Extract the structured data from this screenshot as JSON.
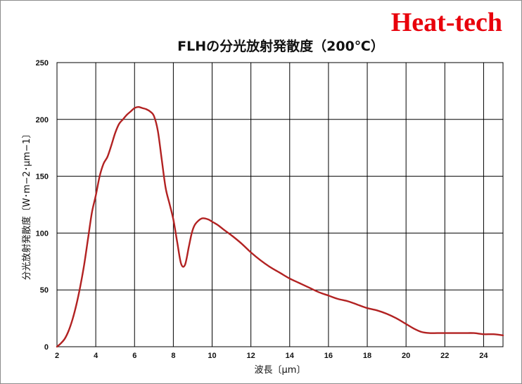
{
  "brand": "Heat-tech",
  "chart_data": {
    "type": "line",
    "title": "FLHの分光放射発散度（200℃）",
    "xlabel": "波長〔μm〕",
    "ylabel": "分光放射発散度〔W･m−2･μm−1〕",
    "xlim": [
      2,
      25
    ],
    "ylim": [
      0,
      250
    ],
    "xticks": [
      2,
      4,
      6,
      8,
      10,
      12,
      14,
      16,
      18,
      20,
      22,
      24
    ],
    "yticks": [
      0,
      50,
      100,
      150,
      200,
      250
    ],
    "grid": true,
    "line_color": "#b22222",
    "series": [
      {
        "x": [
          2.0,
          2.2,
          2.4,
          2.6,
          2.8,
          3.0,
          3.2,
          3.4,
          3.6,
          3.8,
          4.0,
          4.2,
          4.4,
          4.6,
          4.8,
          5.0,
          5.2,
          5.4,
          5.6,
          5.8,
          6.0,
          6.2,
          6.4,
          6.6,
          6.8,
          7.0,
          7.2,
          7.4,
          7.6,
          7.8,
          8.0,
          8.2,
          8.4,
          8.6,
          8.8,
          8.95,
          9.1,
          9.3,
          9.5,
          9.8,
          10.0,
          10.3,
          10.6,
          11.0,
          11.5,
          12.0,
          12.5,
          13.0,
          13.5,
          14.0,
          14.5,
          15.0,
          15.5,
          16.0,
          16.5,
          17.0,
          17.5,
          18.0,
          18.5,
          19.0,
          19.5,
          20.0,
          20.4,
          20.8,
          21.2,
          21.6,
          22.0,
          22.5,
          23.0,
          23.5,
          24.0,
          24.5,
          25.0
        ],
        "values": [
          0,
          3,
          7,
          14,
          24,
          37,
          53,
          72,
          95,
          118,
          133,
          150,
          161,
          167,
          177,
          188,
          196,
          200,
          204,
          207,
          210,
          211,
          210,
          209,
          207,
          203,
          190,
          165,
          140,
          126,
          112,
          92,
          73,
          72,
          88,
          100,
          107,
          111,
          113,
          112,
          110,
          107,
          103,
          98,
          91,
          83,
          76,
          70,
          65,
          60,
          56,
          52,
          48,
          45,
          42,
          40,
          37,
          34,
          32,
          29,
          25,
          20,
          16,
          13,
          12,
          12,
          12,
          12,
          12,
          12,
          11,
          11,
          10
        ]
      }
    ]
  }
}
